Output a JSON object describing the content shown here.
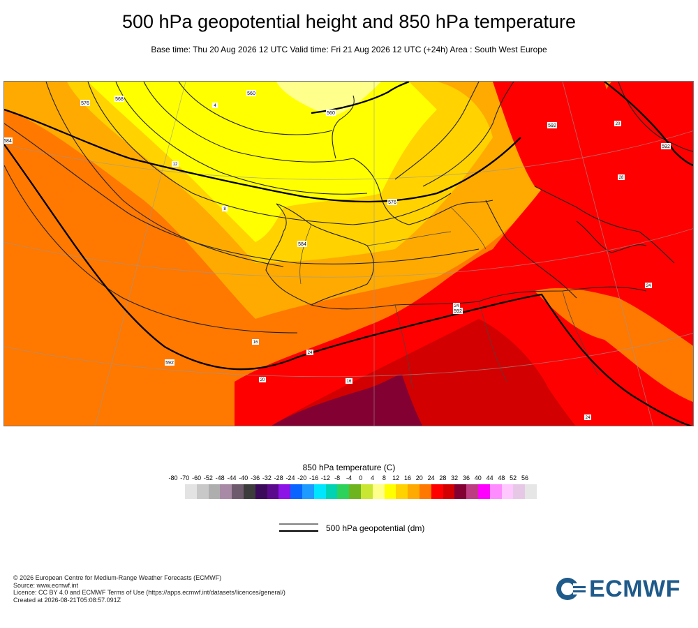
{
  "header": {
    "title": "500 hPa geopotential height and 850 hPa temperature",
    "subtitle": "Base time: Thu 20 Aug 2026 12 UTC Valid time: Fri 21 Aug 2026 12 UTC (+24h) Area : South West Europe"
  },
  "map": {
    "contour_labels": [
      "584",
      "576",
      "568",
      "560",
      "560",
      "576",
      "584",
      "592",
      "592",
      "592",
      "592"
    ],
    "temperature_labels": [
      "4",
      "8",
      "12",
      "16",
      "20",
      "24",
      "20",
      "24",
      "28",
      "24",
      "24",
      "16"
    ]
  },
  "legend": {
    "title": "850 hPa temperature (C)",
    "ticks": [
      "-80",
      "-70",
      "-60",
      "-52",
      "-48",
      "-44",
      "-40",
      "-36",
      "-32",
      "-28",
      "-24",
      "-20",
      "-16",
      "-12",
      "-8",
      "-4",
      "0",
      "4",
      "8",
      "12",
      "16",
      "20",
      "24",
      "28",
      "32",
      "36",
      "40",
      "44",
      "48",
      "52",
      "56"
    ],
    "colors": [
      "#e3e3e3",
      "#c8c8c8",
      "#aeaeae",
      "#a889a6",
      "#6e5a6d",
      "#3c3c3c",
      "#3c0a5a",
      "#5a0a8c",
      "#8c14e6",
      "#0a64ff",
      "#1e9bff",
      "#00e6ff",
      "#00d2b4",
      "#2dd25a",
      "#6eb41e",
      "#c8e632",
      "#ffff8c",
      "#ffff00",
      "#ffd200",
      "#ffaa00",
      "#ff7800",
      "#ff0000",
      "#d20000",
      "#820032",
      "#be3c82",
      "#ff00ff",
      "#ff8cff",
      "#ffc8ff",
      "#e6c8e6",
      "#e6e6e6"
    ],
    "geopotential_label": "500 hPa geopotential (dm)"
  },
  "footer": {
    "lines": [
      "© 2026 European Centre for Medium-Range Weather Forecasts (ECMWF)",
      "Source: www.ecmwf.int",
      "Licence: CC BY 4.0 and ECMWF Terms of Use (https://apps.ecmwf.int/datasets/licences/general/)",
      "Created at 2026-08-21T05:08:57.091Z"
    ],
    "logo_text": "ECMWF",
    "logo_color": "#1e5a8a"
  }
}
